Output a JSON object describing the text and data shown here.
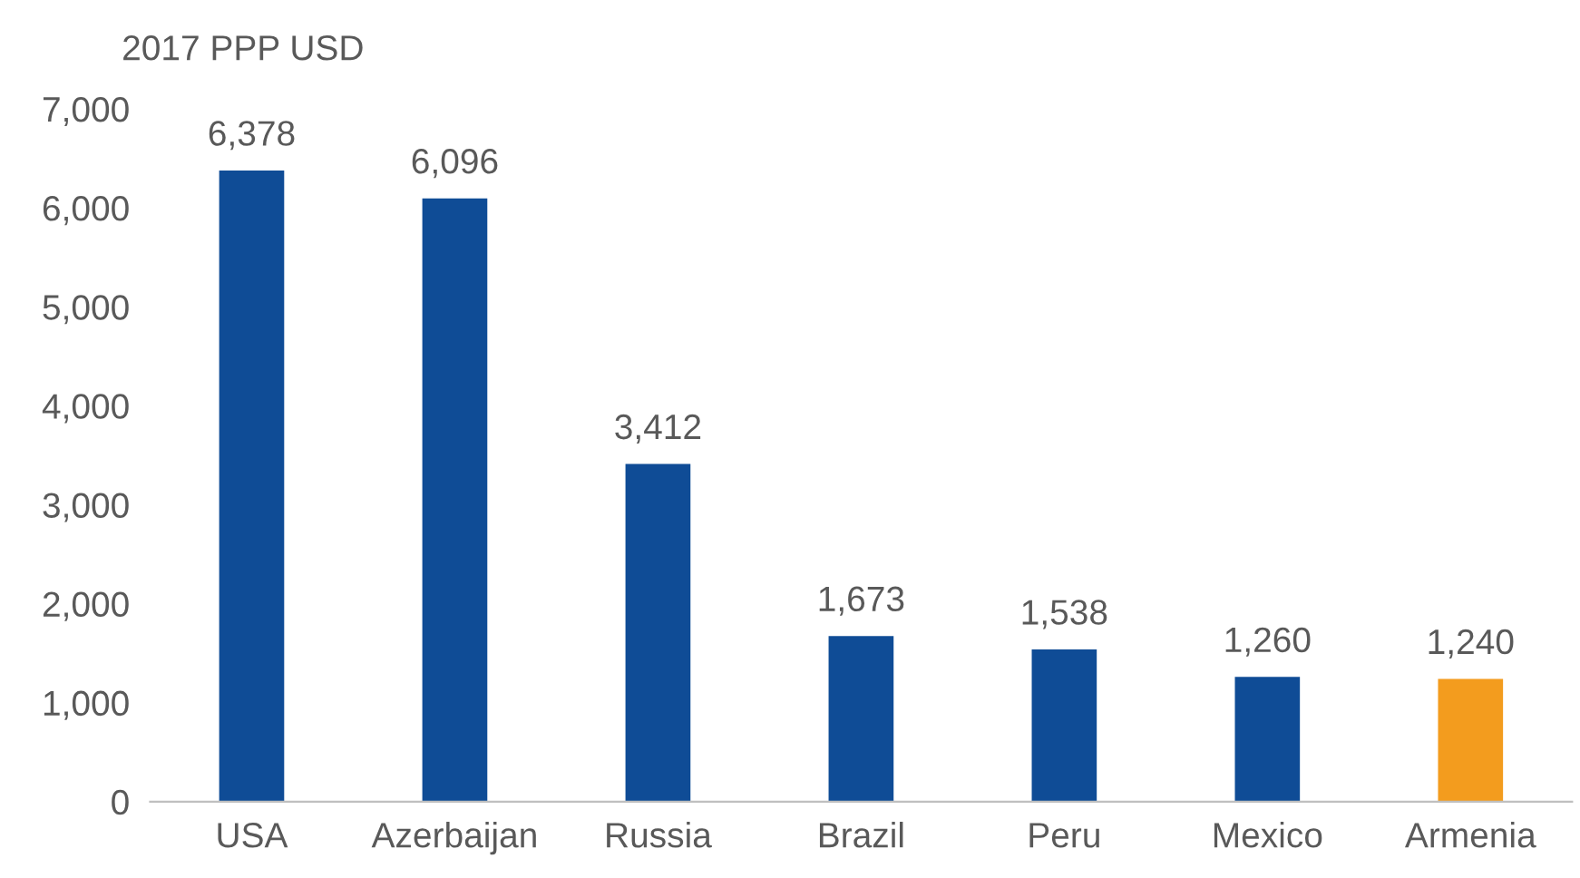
{
  "chart_data": {
    "type": "bar",
    "ylabel": "2017 PPP USD",
    "categories": [
      "USA",
      "Azerbaijan",
      "Russia",
      "Brazil",
      "Peru",
      "Mexico",
      "Armenia"
    ],
    "values": [
      6378,
      6096,
      3412,
      1673,
      1538,
      1260,
      1240
    ],
    "value_labels": [
      "6,378",
      "6,096",
      "3,412",
      "1,673",
      "1,538",
      "1,260",
      "1,240"
    ],
    "colors": [
      "#0f4c96",
      "#0f4c96",
      "#0f4c96",
      "#0f4c96",
      "#0f4c96",
      "#0f4c96",
      "#f39c1e"
    ],
    "ylim": [
      0,
      7000
    ],
    "yticks": [
      {
        "value": 0,
        "label": "0"
      },
      {
        "value": 1000,
        "label": "1,000"
      },
      {
        "value": 2000,
        "label": "2,000"
      },
      {
        "value": 3000,
        "label": "3,000"
      },
      {
        "value": 4000,
        "label": "4,000"
      },
      {
        "value": 5000,
        "label": "5,000"
      },
      {
        "value": 6000,
        "label": "6,000"
      },
      {
        "value": 7000,
        "label": "7,000"
      }
    ],
    "grid": false,
    "legend": false
  }
}
